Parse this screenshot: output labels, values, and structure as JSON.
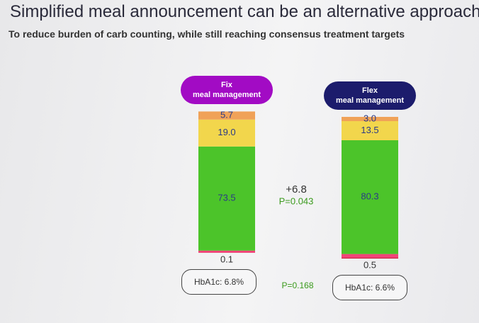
{
  "chart_data": {
    "type": "stacked_bar",
    "title": "Simplified meal announcement can be an alternative approach",
    "subtitle": "To reduce burden of carb counting, while still reaching consensus treatment targets",
    "categories": [
      "Fix\nmeal management",
      "Flex\nmeal management"
    ],
    "category_colors": [
      "#a20bc4",
      "#1c1c6c"
    ],
    "series": [
      {
        "color": "#c8203c",
        "values": [
          0.1,
          0.5
        ]
      },
      {
        "color": "#f04478",
        "values": [
          1.5,
          2.7
        ]
      },
      {
        "color": "#4cc42a",
        "values": [
          73.5,
          80.3
        ]
      },
      {
        "color": "#f2d64c",
        "values": [
          19.0,
          13.5
        ],
        "value_labels": [
          "19.0",
          "13.5"
        ]
      },
      {
        "color": "#f0a258",
        "values": [
          5.7,
          3.0
        ],
        "value_labels": [
          "5.7",
          "3.0"
        ]
      }
    ],
    "hba1c_labels": [
      "HbA1c: 6.8%",
      "HbA1c: 6.6%"
    ],
    "difference": "+6.8",
    "difference_p": "P=0.043",
    "hba1c_p": "P=0.168"
  }
}
